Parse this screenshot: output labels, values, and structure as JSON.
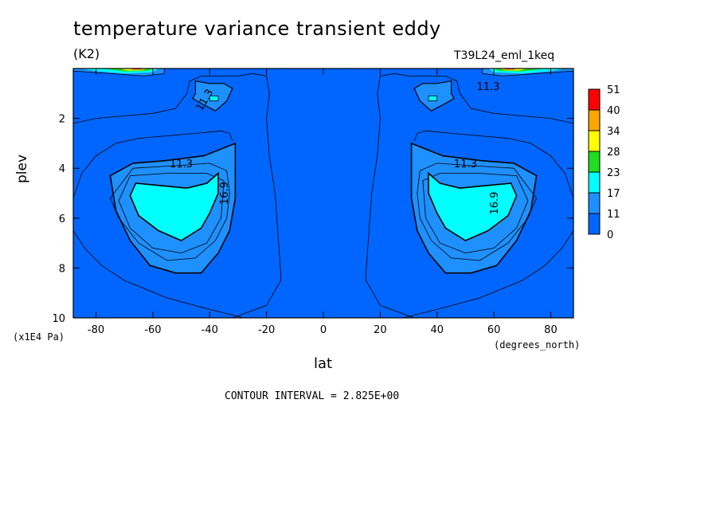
{
  "chart_data": {
    "type": "contour",
    "title": "temperature variance transient eddy",
    "units": "(K2)",
    "dataset": "T39L24_eml_1keq",
    "xlabel": "lat",
    "x_units": "(degrees_north)",
    "ylabel": "plev",
    "y_units": "(x1E4 Pa)",
    "xlim": [
      -88,
      88
    ],
    "ylim": [
      0,
      10
    ],
    "y_inverted": true,
    "x_ticks": [
      -80,
      -60,
      -40,
      -20,
      0,
      20,
      40,
      60,
      80
    ],
    "x_tick_labels": [
      "-80",
      "-60",
      "-40",
      "-20",
      "0",
      "20",
      "40",
      "60",
      "80"
    ],
    "y_ticks": [
      2,
      4,
      6,
      8,
      10
    ],
    "y_tick_labels": [
      "2",
      "4",
      "6",
      "8",
      "10"
    ],
    "contour_interval_text": "CONTOUR INTERVAL = 2.825E+00",
    "colorbar": {
      "levels": [
        "51",
        "40",
        "34",
        "28",
        "23",
        "17",
        "11",
        "0"
      ],
      "colors": [
        "#ff0000",
        "#ffa500",
        "#ffff00",
        "#22dd22",
        "#00ffff",
        "#1e90ff",
        "#0066ff"
      ]
    },
    "contour_labels": [
      "11.3",
      "11.3",
      "11.3",
      "16.9",
      "11.3",
      "16.9"
    ],
    "regions": [
      {
        "name": "sh-mid-core",
        "lat": -50,
        "plev": 5.5,
        "level": "17-23",
        "color": "#00ffff"
      },
      {
        "name": "nh-mid-core",
        "lat": 50,
        "plev": 5.5,
        "level": "17-23",
        "color": "#00ffff"
      },
      {
        "name": "sh-mid-ring",
        "lat": -50,
        "plev": 5.5,
        "level": "11-17",
        "color": "#1e90ff"
      },
      {
        "name": "nh-mid-ring",
        "lat": 50,
        "plev": 5.5,
        "level": "11-17",
        "color": "#1e90ff"
      },
      {
        "name": "sh-top-max",
        "lat": -60,
        "plev": 0.1,
        "level": "28-51",
        "color": "#ff0000"
      },
      {
        "name": "nh-top-max",
        "lat": 65,
        "plev": 0.1,
        "level": "28-51",
        "color": "#ff0000"
      }
    ],
    "background_color": "#0066ff"
  }
}
